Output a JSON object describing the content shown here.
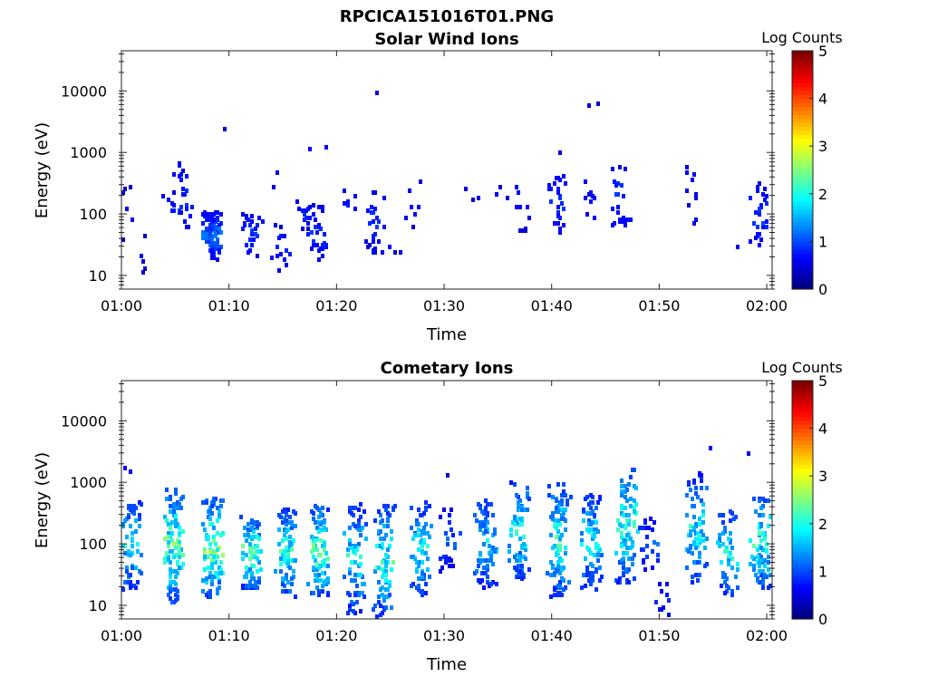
{
  "figure": {
    "title": "RPCICA151016T01.PNG"
  },
  "chart_data": [
    {
      "type": "heatmap",
      "title": "Solar Wind Ions",
      "xlabel": "Time",
      "ylabel": "Energy (eV)",
      "x_ticks": [
        "01:00",
        "01:10",
        "01:20",
        "01:30",
        "01:40",
        "01:50",
        "02:00"
      ],
      "x_range_minutes": [
        0,
        60.5
      ],
      "y_ticks": [
        "10",
        "100",
        "1000",
        "10000"
      ],
      "y_scale": "log",
      "y_range": [
        6,
        45000
      ],
      "colorbar": {
        "label": "Log Counts",
        "ticks": [
          "0",
          "1",
          "2",
          "3",
          "4",
          "5"
        ],
        "range": [
          0,
          5
        ],
        "colormap": "jet"
      },
      "clusters": [
        {
          "t": 0.5,
          "e_lo": 40,
          "e_hi": 300,
          "n": 6,
          "peak": 0.3
        },
        {
          "t": 1.8,
          "e_lo": 12,
          "e_hi": 50,
          "n": 5,
          "peak": 0.2
        },
        {
          "t": 4.5,
          "e_lo": 60,
          "e_hi": 300,
          "n": 8,
          "peak": 0.4
        },
        {
          "t": 5.6,
          "e_lo": 50,
          "e_hi": 700,
          "n": 22,
          "peak": 0.6
        },
        {
          "t": 8.3,
          "e_lo": 20,
          "e_hi": 120,
          "n": 90,
          "peak": 0.9
        },
        {
          "t": 11.9,
          "e_lo": 20,
          "e_hi": 120,
          "n": 30,
          "peak": 0.6
        },
        {
          "t": 9.6,
          "e_lo": 2500,
          "e_hi": 3000,
          "n": 1,
          "peak": 0.3
        },
        {
          "t": 14.6,
          "e_lo": 12,
          "e_hi": 80,
          "n": 14,
          "peak": 0.5
        },
        {
          "t": 14.2,
          "e_lo": 250,
          "e_hi": 650,
          "n": 2,
          "peak": 0.3
        },
        {
          "t": 17.0,
          "e_lo": 60,
          "e_hi": 200,
          "n": 14,
          "peak": 0.5
        },
        {
          "t": 18.2,
          "e_lo": 20,
          "e_hi": 150,
          "n": 30,
          "peak": 0.6
        },
        {
          "t": 18.0,
          "e_lo": 1100,
          "e_hi": 1500,
          "n": 2,
          "peak": 0.3
        },
        {
          "t": 21.0,
          "e_lo": 80,
          "e_hi": 300,
          "n": 6,
          "peak": 0.4
        },
        {
          "t": 23.4,
          "e_lo": 25,
          "e_hi": 260,
          "n": 28,
          "peak": 0.6
        },
        {
          "t": 23.5,
          "e_lo": 10000,
          "e_hi": 11000,
          "n": 1,
          "peak": 0.3
        },
        {
          "t": 25.2,
          "e_lo": 22,
          "e_hi": 45,
          "n": 3,
          "peak": 0.3
        },
        {
          "t": 27.0,
          "e_lo": 60,
          "e_hi": 400,
          "n": 7,
          "peak": 0.4
        },
        {
          "t": 32.8,
          "e_lo": 150,
          "e_hi": 380,
          "n": 3,
          "peak": 0.3
        },
        {
          "t": 35.5,
          "e_lo": 170,
          "e_hi": 300,
          "n": 3,
          "peak": 0.3
        },
        {
          "t": 37.0,
          "e_lo": 50,
          "e_hi": 400,
          "n": 10,
          "peak": 0.4
        },
        {
          "t": 40.5,
          "e_lo": 50,
          "e_hi": 500,
          "n": 26,
          "peak": 0.6
        },
        {
          "t": 41.0,
          "e_lo": 900,
          "e_hi": 1100,
          "n": 1,
          "peak": 0.3
        },
        {
          "t": 43.5,
          "e_lo": 60,
          "e_hi": 450,
          "n": 10,
          "peak": 0.4
        },
        {
          "t": 43.9,
          "e_lo": 3500,
          "e_hi": 7000,
          "n": 2,
          "peak": 0.3
        },
        {
          "t": 46.3,
          "e_lo": 60,
          "e_hi": 800,
          "n": 24,
          "peak": 0.6
        },
        {
          "t": 52.8,
          "e_lo": 150,
          "e_hi": 700,
          "n": 8,
          "peak": 0.4
        },
        {
          "t": 53.4,
          "e_lo": 70,
          "e_hi": 90,
          "n": 2,
          "peak": 0.3
        },
        {
          "t": 57.0,
          "e_lo": 28,
          "e_hi": 35,
          "n": 1,
          "peak": 0.3
        },
        {
          "t": 59.2,
          "e_lo": 28,
          "e_hi": 350,
          "n": 30,
          "peak": 0.6
        }
      ]
    },
    {
      "type": "heatmap",
      "title": "Cometary Ions",
      "xlabel": "Time",
      "ylabel": "Energy (eV)",
      "x_ticks": [
        "01:00",
        "01:10",
        "01:20",
        "01:30",
        "01:40",
        "01:50",
        "02:00"
      ],
      "x_range_minutes": [
        0,
        60.5
      ],
      "y_ticks": [
        "10",
        "100",
        "1000",
        "10000"
      ],
      "y_scale": "log",
      "y_range": [
        6,
        45000
      ],
      "colorbar": {
        "label": "Log Counts",
        "ticks": [
          "0",
          "1",
          "2",
          "3",
          "4",
          "5"
        ],
        "range": [
          0,
          5
        ],
        "colormap": "jet"
      },
      "clusters": [
        {
          "t": 0.7,
          "e_lo": 20,
          "e_hi": 500,
          "n": 70,
          "peak": 1.6
        },
        {
          "t": 0.3,
          "e_lo": 1300,
          "e_hi": 2600,
          "n": 4,
          "peak": 0.4
        },
        {
          "t": 4.8,
          "e_lo": 12,
          "e_hi": 900,
          "n": 110,
          "peak": 2.0
        },
        {
          "t": 8.3,
          "e_lo": 15,
          "e_hi": 600,
          "n": 110,
          "peak": 2.2
        },
        {
          "t": 11.8,
          "e_lo": 20,
          "e_hi": 300,
          "n": 80,
          "peak": 2.0
        },
        {
          "t": 15.2,
          "e_lo": 15,
          "e_hi": 400,
          "n": 80,
          "peak": 1.8
        },
        {
          "t": 18.3,
          "e_lo": 15,
          "e_hi": 450,
          "n": 90,
          "peak": 2.0
        },
        {
          "t": 21.6,
          "e_lo": 8,
          "e_hi": 500,
          "n": 80,
          "peak": 1.6
        },
        {
          "t": 24.2,
          "e_lo": 7,
          "e_hi": 450,
          "n": 80,
          "peak": 1.8
        },
        {
          "t": 27.8,
          "e_lo": 15,
          "e_hi": 500,
          "n": 70,
          "peak": 1.6
        },
        {
          "t": 30.3,
          "e_lo": 40,
          "e_hi": 400,
          "n": 25,
          "peak": 0.8
        },
        {
          "t": 29.5,
          "e_lo": 1400,
          "e_hi": 1600,
          "n": 1,
          "peak": 0.3
        },
        {
          "t": 33.7,
          "e_lo": 20,
          "e_hi": 600,
          "n": 80,
          "peak": 1.4
        },
        {
          "t": 36.9,
          "e_lo": 25,
          "e_hi": 1200,
          "n": 80,
          "peak": 1.6
        },
        {
          "t": 40.5,
          "e_lo": 15,
          "e_hi": 1000,
          "n": 100,
          "peak": 1.8
        },
        {
          "t": 43.6,
          "e_lo": 20,
          "e_hi": 700,
          "n": 80,
          "peak": 1.6
        },
        {
          "t": 46.8,
          "e_lo": 25,
          "e_hi": 2000,
          "n": 90,
          "peak": 1.8
        },
        {
          "t": 49.0,
          "e_lo": 40,
          "e_hi": 300,
          "n": 25,
          "peak": 0.8
        },
        {
          "t": 50.0,
          "e_lo": 7,
          "e_hi": 25,
          "n": 10,
          "peak": 0.5
        },
        {
          "t": 53.3,
          "e_lo": 25,
          "e_hi": 1500,
          "n": 80,
          "peak": 1.6
        },
        {
          "t": 56.2,
          "e_lo": 15,
          "e_hi": 400,
          "n": 50,
          "peak": 1.6
        },
        {
          "t": 59.3,
          "e_lo": 20,
          "e_hi": 700,
          "n": 80,
          "peak": 1.8
        },
        {
          "t": 55.0,
          "e_lo": 3700,
          "e_hi": 3900,
          "n": 1,
          "peak": 0.3
        },
        {
          "t": 58.2,
          "e_lo": 3000,
          "e_hi": 3300,
          "n": 1,
          "peak": 0.3
        }
      ]
    }
  ]
}
